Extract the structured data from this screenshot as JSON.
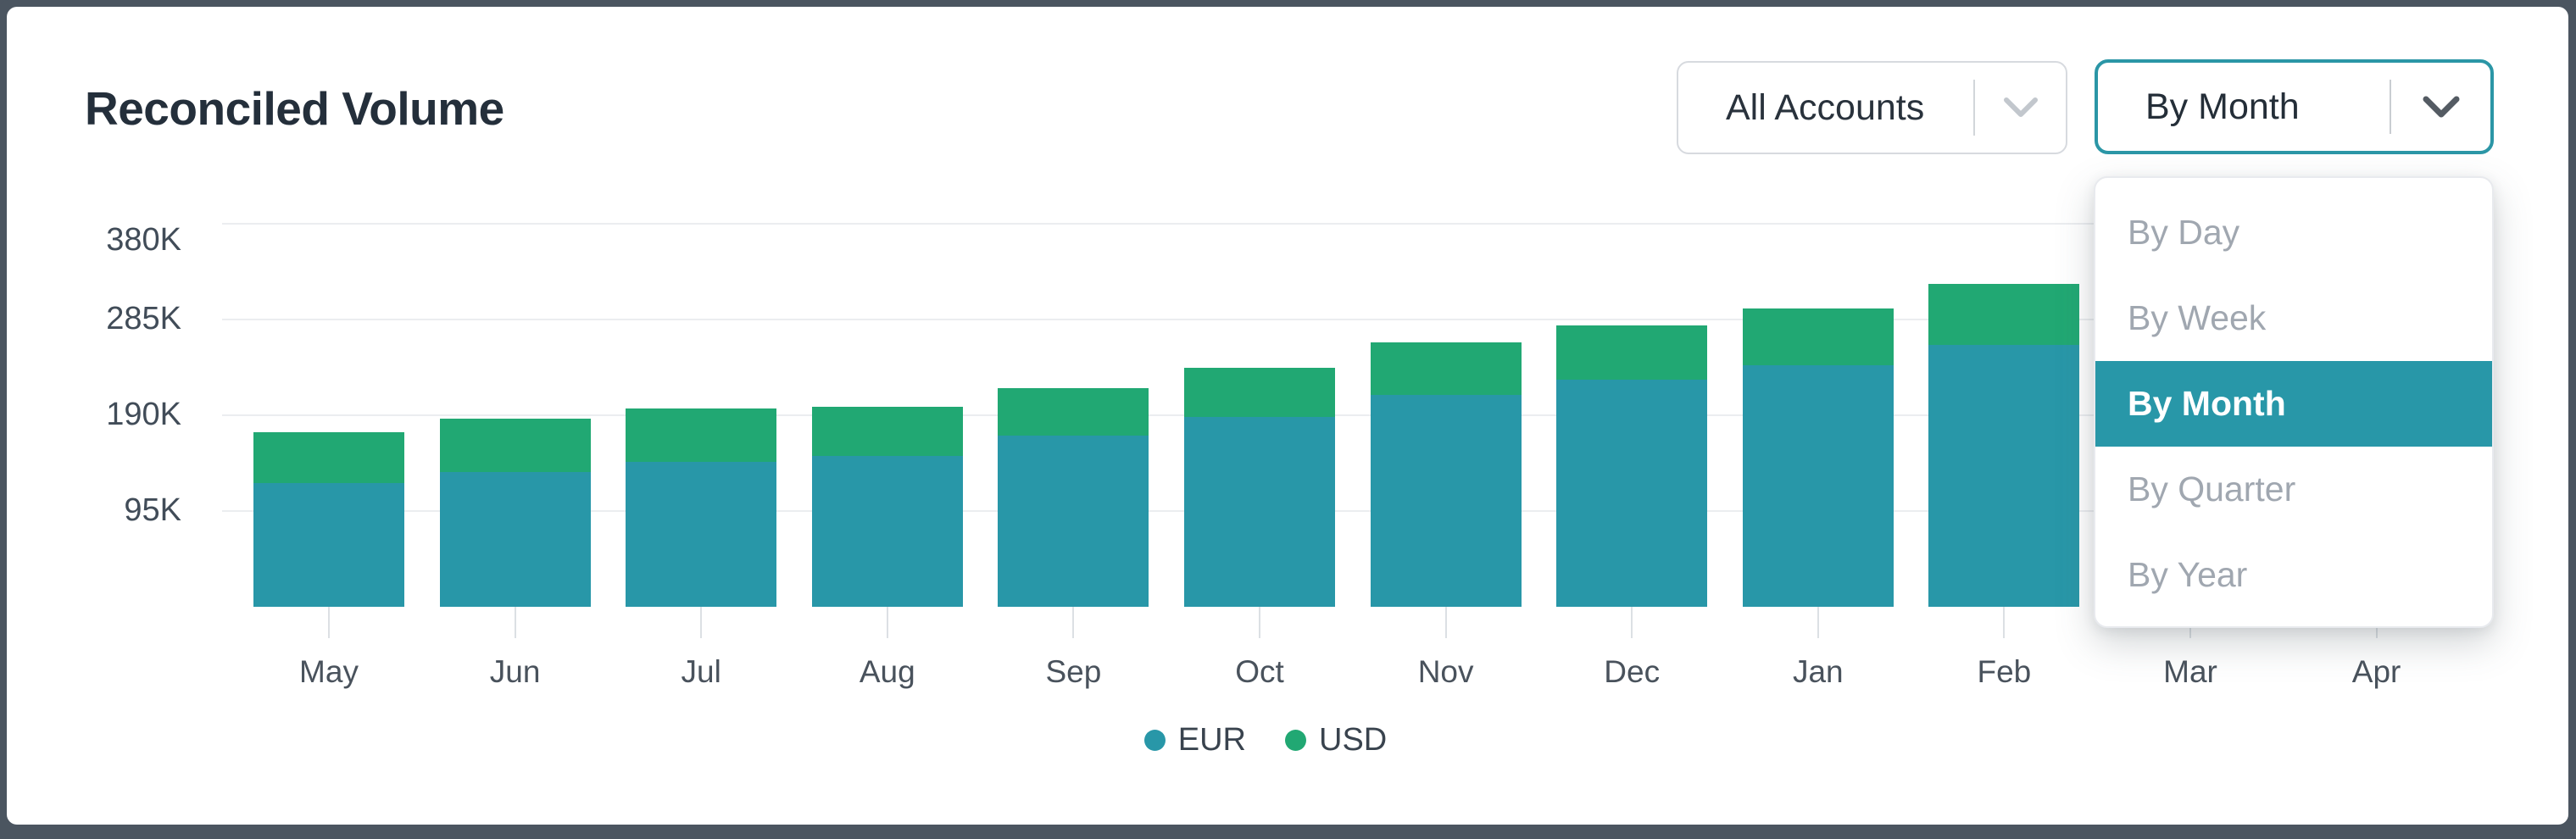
{
  "card": {
    "title": "Reconciled Volume"
  },
  "controls": {
    "account_filter": {
      "value": "All Accounts"
    },
    "period_filter": {
      "value": "By Month"
    }
  },
  "dropdown": {
    "options": [
      {
        "label": "By Day",
        "selected": false
      },
      {
        "label": "By Week",
        "selected": false
      },
      {
        "label": "By Month",
        "selected": true
      },
      {
        "label": "By Quarter",
        "selected": false
      },
      {
        "label": "By Year",
        "selected": false
      }
    ]
  },
  "chart_data": {
    "type": "bar",
    "stacked": true,
    "title": "Reconciled Volume",
    "categories": [
      "May",
      "Jun",
      "Jul",
      "Aug",
      "Sep",
      "Oct",
      "Nov",
      "Dec",
      "Jan",
      "Feb",
      "Mar",
      "Apr"
    ],
    "series": [
      {
        "name": "EUR",
        "color": "#2897a8",
        "values": [
          123000,
          134000,
          144000,
          150000,
          170000,
          188000,
          210000,
          225000,
          240000,
          260000,
          null,
          null
        ]
      },
      {
        "name": "USD",
        "color": "#21a873",
        "values": [
          50000,
          53000,
          53000,
          48000,
          47000,
          49000,
          52000,
          54000,
          56000,
          60000,
          null,
          null
        ]
      }
    ],
    "y_ticks": [
      {
        "label": "95K",
        "value": 95000
      },
      {
        "label": "190K",
        "value": 190000
      },
      {
        "label": "285K",
        "value": 285000
      },
      {
        "label": "380K",
        "value": 380000
      }
    ],
    "ylim": [
      0,
      427000
    ],
    "grid": true,
    "legend": [
      "EUR",
      "USD"
    ],
    "legend_position": "bottom",
    "note": "Mar and Apr bars are occluded by the open period dropdown menu"
  },
  "colors": {
    "accent_teal": "#2897a8",
    "accent_green": "#21a873",
    "frame": "#4b5560",
    "gridline": "#ebedf0",
    "axis_text": "#414c58",
    "title_text": "#242f3b",
    "muted_option_text": "#a0a7b0",
    "selected_option_bg": "#2897a8"
  }
}
